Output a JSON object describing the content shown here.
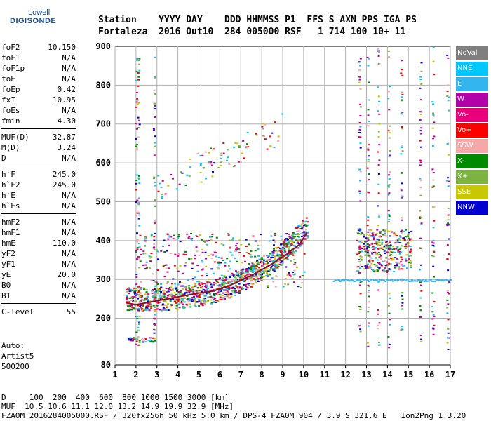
{
  "logo": {
    "line1": "Lowell",
    "line2": "DIGISONDE"
  },
  "header": {
    "line1": "Station    YYYY DAY    DDD HHMMSS P1  FFS S AXN PPS IGA PS",
    "line2": "Fortaleza  2016 Out10  284 005000 RSF   1 714 100 10+ 11"
  },
  "params": [
    {
      "label": "foF2",
      "value": "10.150"
    },
    {
      "label": "foF1",
      "value": "N/A"
    },
    {
      "label": "foF1p",
      "value": "N/A"
    },
    {
      "label": "foE",
      "value": "N/A"
    },
    {
      "label": "foEp",
      "value": "0.42"
    },
    {
      "label": "fxI",
      "value": "10.95"
    },
    {
      "label": "foEs",
      "value": "N/A"
    },
    {
      "label": "fmin",
      "value": "4.30"
    },
    {
      "sep": true
    },
    {
      "label": "MUF(D)",
      "value": "32.87"
    },
    {
      "label": "M(D)",
      "value": "3.24"
    },
    {
      "label": "D",
      "value": "N/A"
    },
    {
      "sep": true
    },
    {
      "label": "h`F",
      "value": "245.0"
    },
    {
      "label": "h`F2",
      "value": "245.0"
    },
    {
      "label": "h`E",
      "value": "N/A"
    },
    {
      "label": "h`Es",
      "value": "N/A"
    },
    {
      "sep": true
    },
    {
      "label": "hmF2",
      "value": "N/A"
    },
    {
      "label": "hmF1",
      "value": "N/A"
    },
    {
      "label": "hmE",
      "value": "110.0"
    },
    {
      "label": "yF2",
      "value": "N/A"
    },
    {
      "label": "yF1",
      "value": "N/A"
    },
    {
      "label": "yE",
      "value": "20.0"
    },
    {
      "label": "B0",
      "value": "N/A"
    },
    {
      "label": "B1",
      "value": "N/A"
    },
    {
      "sep": true
    },
    {
      "label": "C-level",
      "value": "55"
    }
  ],
  "auto": {
    "line1": "Auto:",
    "line2": "Artist5",
    "line3": "500200"
  },
  "bottom": {
    "line1": "D     100  200  400  600  800 1000 1500 3000 [km]",
    "line2": "MUF  10.5 10.6 11.1 12.0 13.2 14.9 19.9 32.9 [MHz]",
    "line3": "FZA0M_2016284005000.RSF / 320fx256h 50 kHz 5.0 km / DPS-4 FZA0M 904 / 3.9 S 321.6 E   Ion2Png 1.3.20"
  },
  "legend": [
    {
      "label": "NoVal",
      "color": "#7f7f7f"
    },
    {
      "label": "NNE",
      "color": "#00c8ff"
    },
    {
      "label": "E",
      "color": "#33b5f0"
    },
    {
      "label": "W",
      "color": "#b000a8"
    },
    {
      "label": "Vo-",
      "color": "#e8007a"
    },
    {
      "label": "Vo+",
      "color": "#ff0000"
    },
    {
      "label": "SSW",
      "color": "#f4a8a8"
    },
    {
      "label": "X-",
      "color": "#008a00"
    },
    {
      "label": "X+",
      "color": "#7cb342"
    },
    {
      "label": "SSE",
      "color": "#c8c800"
    },
    {
      "label": "NNW",
      "color": "#0000d0"
    }
  ],
  "chart_data": {
    "type": "scatter",
    "title": "",
    "xlabel": "",
    "ylabel": "",
    "xlim": [
      1,
      17
    ],
    "ylim": [
      80,
      900
    ],
    "x_ticks": [
      1,
      2,
      3,
      4,
      5,
      6,
      7,
      8,
      9,
      10,
      11,
      12,
      13,
      14,
      15,
      16,
      17
    ],
    "y_ticks": [
      80,
      200,
      300,
      400,
      500,
      600,
      700,
      800,
      900
    ],
    "grid": true,
    "series": [
      {
        "name": "trace",
        "values": [
          [
            1.5,
            240
          ],
          [
            2,
            235
          ],
          [
            3,
            245
          ],
          [
            4,
            255
          ],
          [
            5,
            265
          ],
          [
            5.7,
            270
          ],
          [
            6.5,
            285
          ],
          [
            7.5,
            310
          ],
          [
            8.5,
            340
          ],
          [
            9.2,
            365
          ],
          [
            9.8,
            390
          ],
          [
            10.15,
            420
          ]
        ]
      }
    ]
  }
}
